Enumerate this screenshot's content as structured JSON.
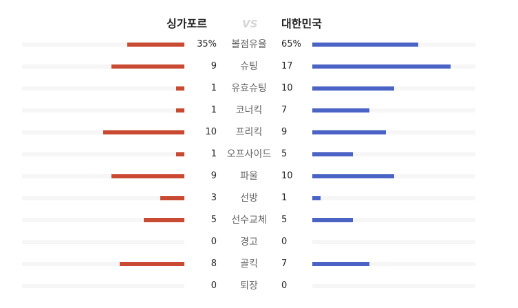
{
  "header": {
    "home_team": "싱가포르",
    "vs": "VS",
    "away_team": "대한민국"
  },
  "colors": {
    "home": "#c94a32",
    "away": "#4a63c4"
  },
  "stats": [
    {
      "label": "볼점유율",
      "home": "35%",
      "away": "65%",
      "home_fill": 0.35,
      "away_fill": 0.65
    },
    {
      "label": "슈팅",
      "home": "9",
      "away": "17",
      "home_fill": 0.45,
      "away_fill": 0.85
    },
    {
      "label": "유효슈팅",
      "home": "1",
      "away": "10",
      "home_fill": 0.05,
      "away_fill": 0.5
    },
    {
      "label": "코너킥",
      "home": "1",
      "away": "7",
      "home_fill": 0.05,
      "away_fill": 0.35
    },
    {
      "label": "프리킥",
      "home": "10",
      "away": "9",
      "home_fill": 0.5,
      "away_fill": 0.45
    },
    {
      "label": "오프사이드",
      "home": "1",
      "away": "5",
      "home_fill": 0.05,
      "away_fill": 0.25
    },
    {
      "label": "파울",
      "home": "9",
      "away": "10",
      "home_fill": 0.45,
      "away_fill": 0.5
    },
    {
      "label": "선방",
      "home": "3",
      "away": "1",
      "home_fill": 0.15,
      "away_fill": 0.05
    },
    {
      "label": "선수교체",
      "home": "5",
      "away": "5",
      "home_fill": 0.25,
      "away_fill": 0.25
    },
    {
      "label": "경고",
      "home": "0",
      "away": "0",
      "home_fill": 0,
      "away_fill": 0
    },
    {
      "label": "골킥",
      "home": "8",
      "away": "7",
      "home_fill": 0.4,
      "away_fill": 0.35
    },
    {
      "label": "퇴장",
      "home": "0",
      "away": "0",
      "home_fill": 0,
      "away_fill": 0
    }
  ]
}
